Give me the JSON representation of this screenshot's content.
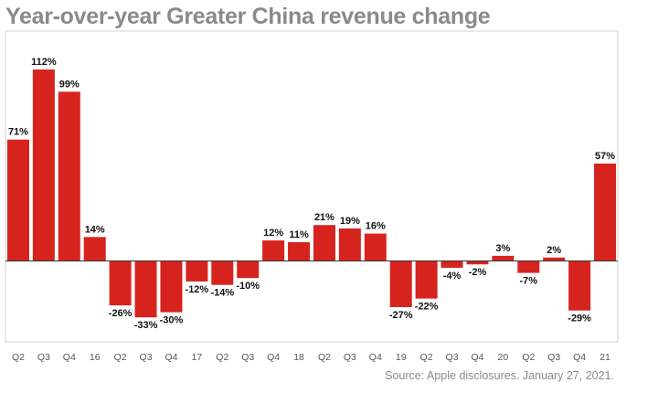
{
  "title": "Year-over-year Greater China revenue change",
  "source": "Source: Apple disclosures. January 27, 2021.",
  "colors": {
    "bar": "#d7231e",
    "frame": "#d0d0d0",
    "axis": "#333333",
    "title": "#8a8a8a"
  },
  "chart_data": {
    "type": "bar",
    "title": "Year-over-year Greater China revenue change",
    "xlabel": "",
    "ylabel": "",
    "unit": "%",
    "ylim": [
      -45,
      125
    ],
    "grid": false,
    "categories": [
      "Q2",
      "Q3",
      "Q4",
      "16",
      "Q2",
      "Q3",
      "Q4",
      "17",
      "Q2",
      "Q3",
      "Q4",
      "18",
      "Q2",
      "Q3",
      "Q4",
      "19",
      "Q2",
      "Q3",
      "Q4",
      "20",
      "Q2",
      "Q3",
      "Q4",
      "21"
    ],
    "values": [
      71,
      112,
      99,
      14,
      -26,
      -33,
      -30,
      -12,
      -14,
      -10,
      12,
      11,
      21,
      19,
      16,
      -27,
      -22,
      -4,
      -2,
      3,
      -7,
      2,
      -29,
      57
    ],
    "value_labels": [
      "71%",
      "112%",
      "99%",
      "14%",
      "-26%",
      "-33%",
      "-30%",
      "-12%",
      "-14%",
      "-10%",
      "12%",
      "11%",
      "21%",
      "19%",
      "16%",
      "-27%",
      "-22%",
      "-4%",
      "-2%",
      "3%",
      "-7%",
      "2%",
      "-29%",
      "57%"
    ]
  }
}
